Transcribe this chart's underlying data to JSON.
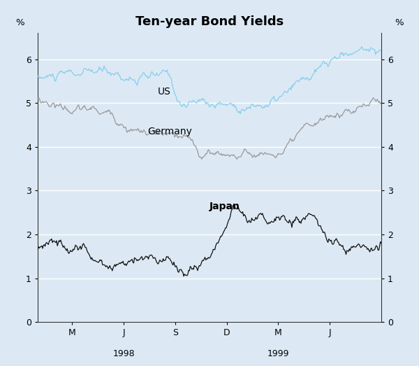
{
  "title": "Ten-year Bond Yields",
  "ylabel_left": "%",
  "ylabel_right": "%",
  "background_color": "#dce9f5",
  "plot_bg_color": "#dce9f5",
  "ylim": [
    0,
    6.6
  ],
  "yticks": [
    0,
    1,
    2,
    3,
    4,
    5,
    6
  ],
  "us_color": "#87CEEB",
  "germany_color": "#999999",
  "japan_color": "#111111",
  "us_label": "US",
  "germany_label": "Germany",
  "japan_label": "Japan",
  "title_fontsize": 13,
  "label_fontsize": 9.5,
  "tick_fontsize": 9,
  "n_points": 420,
  "x_tick_labels": [
    "M",
    "J",
    "S",
    "D",
    "M",
    "J"
  ],
  "gridline_color": "#ffffff",
  "gridline_lw": 1.0
}
